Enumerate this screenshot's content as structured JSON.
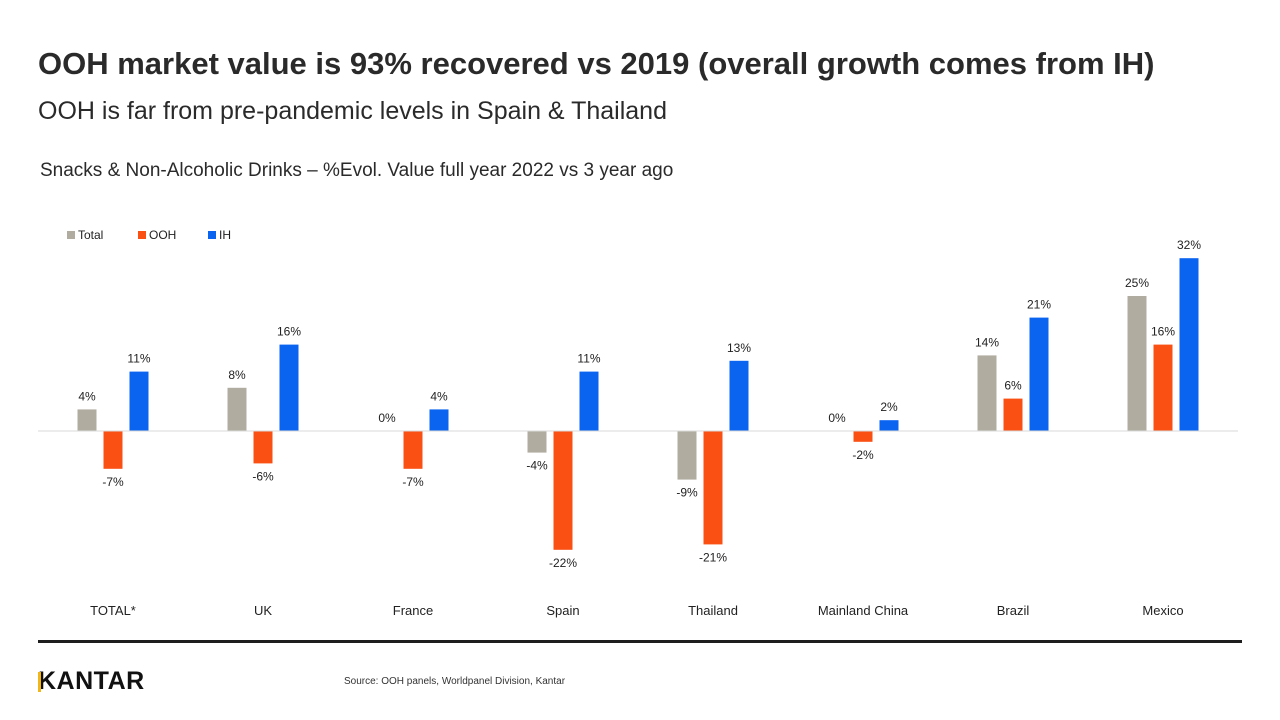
{
  "header": {
    "title": "OOH market value is 93% recovered vs 2019  (overall growth comes from IH)",
    "subtitle": "OOH is far from pre-pandemic levels in Spain & Thailand"
  },
  "chart_data": {
    "type": "bar",
    "title": "Snacks & Non-Alcoholic Drinks – %Evol. Value full year 2022 vs 3 year ago",
    "categories": [
      "TOTAL*",
      "UK",
      "France",
      "Spain",
      "Thailand",
      "Mainland China",
      "Brazil",
      "Mexico"
    ],
    "series": [
      {
        "name": "Total",
        "color": "#b0ada0",
        "values": [
          4,
          8,
          0,
          -4,
          -9,
          0,
          14,
          25
        ]
      },
      {
        "name": "OOH",
        "color": "#fa5014",
        "values": [
          -7,
          -6,
          -7,
          -22,
          -21,
          -2,
          6,
          16
        ]
      },
      {
        "name": "IH",
        "color": "#0a64f0",
        "values": [
          11,
          16,
          4,
          11,
          13,
          2,
          21,
          32
        ]
      }
    ],
    "unit": "%",
    "legend": "top-left",
    "grid": false
  },
  "footer": {
    "logo": "KANTAR",
    "source": "Source: OOH panels, Worldpanel Division, Kantar"
  }
}
